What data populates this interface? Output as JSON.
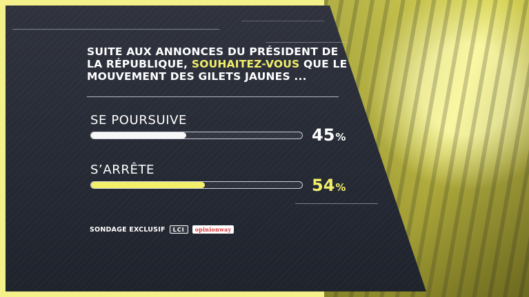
{
  "question": {
    "prefix": "SUITE AUX ANNONCES DU PRÉSIDENT DE LA RÉPUBLIQUE, ",
    "highlight": "SOUHAITEZ-VOUS",
    "suffix": " QUE LE MOUVEMENT DES GILETS JAUNES ..."
  },
  "options": [
    {
      "label": "SE POURSUIVE",
      "value": 45,
      "value_text": "45",
      "unit": "%",
      "bar_color": "#f7f7f7",
      "text_color": "#ffffff"
    },
    {
      "label": "S’ARRÊTE",
      "value": 54,
      "value_text": "54",
      "unit": "%",
      "bar_color": "#f2ef6a",
      "text_color": "#f2ef6a"
    }
  ],
  "footer": {
    "label": "SONDAGE EXCLUSIF",
    "logo_lci": "LCI",
    "logo_opinionway": "opinionway"
  },
  "colors": {
    "panel": "#262a35",
    "accent_yellow": "#f2ef6a",
    "white": "#ffffff"
  }
}
